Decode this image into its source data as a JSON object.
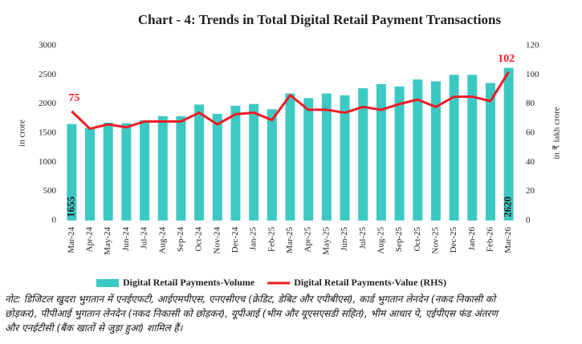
{
  "chart_data": {
    "type": "bar_line",
    "title": "Chart - 4: Trends in Total Digital Retail Payment Transactions",
    "y_label": "in crore",
    "y2_label": "in ₹ lakh crore",
    "categories": [
      "Mar-24",
      "Apr-24",
      "May-24",
      "Jun-24",
      "Jul-24",
      "Aug-24",
      "Sep-24",
      "Oct-24",
      "Nov-24",
      "Dec-24",
      "Jan-25",
      "Feb-25",
      "Mar-25",
      "Apr-25",
      "May-25",
      "Jun-25",
      "Jul-25",
      "Aug-25",
      "Sep-25",
      "Oct-25",
      "Nov-25",
      "Dec-25",
      "Jan-26",
      "Feb-26",
      "Mar-26"
    ],
    "series": [
      {
        "name": "Digital Retail Payments-Volume",
        "type": "bar",
        "axis": "y",
        "color": "#3cc9c3",
        "values": [
          1655,
          1590,
          1680,
          1670,
          1720,
          1790,
          1790,
          1990,
          1830,
          1970,
          2000,
          1910,
          2180,
          2100,
          2180,
          2150,
          2270,
          2340,
          2300,
          2420,
          2390,
          2500,
          2500,
          2360,
          2620
        ],
        "value_labels": [
          "1655",
          null,
          null,
          null,
          null,
          null,
          null,
          null,
          null,
          null,
          null,
          null,
          null,
          null,
          null,
          null,
          null,
          null,
          null,
          null,
          null,
          null,
          null,
          null,
          "2620"
        ]
      },
      {
        "name": "Digital Retail Payments-Value (RHS)",
        "type": "line",
        "axis": "y2",
        "color": "#ee1c25",
        "values": [
          75,
          63,
          66,
          64,
          68,
          68,
          68,
          74,
          66,
          73,
          74,
          69,
          86,
          76,
          76,
          74,
          78,
          76,
          80,
          83,
          78,
          85,
          85,
          82,
          102
        ],
        "value_labels": [
          "75",
          null,
          null,
          null,
          null,
          null,
          null,
          null,
          null,
          null,
          null,
          null,
          null,
          null,
          null,
          null,
          null,
          null,
          null,
          null,
          null,
          null,
          null,
          null,
          "102"
        ]
      }
    ],
    "ylim": [
      0,
      3000
    ],
    "yticks": [
      0,
      500,
      1000,
      1500,
      2000,
      2500,
      3000
    ],
    "y2lim": [
      0,
      120
    ],
    "y2ticks": [
      0,
      20,
      40,
      60,
      80,
      100,
      120
    ]
  },
  "note": [
    "नोट: डिजिटल खुदरा भुगतान में एनईएफटी, आईएमपीएस, एनएसीएच (क्रेडिट, डेबिट और एपीबीएस), कार्ड भुगतान लेनदेन (नकद निकासी को",
    "छोड़कर), पीपीआई भुगतान लेनदेन (नकद निकासी को छोड़कर), यूपीआई (भीम और यूएसएसडी सहित), भीम आधार पे, एईपीएस फंड अंतरण",
    "और एनईटीसी (बैंक खातों से जुड़ा हुआ) शामिल हैं।"
  ]
}
